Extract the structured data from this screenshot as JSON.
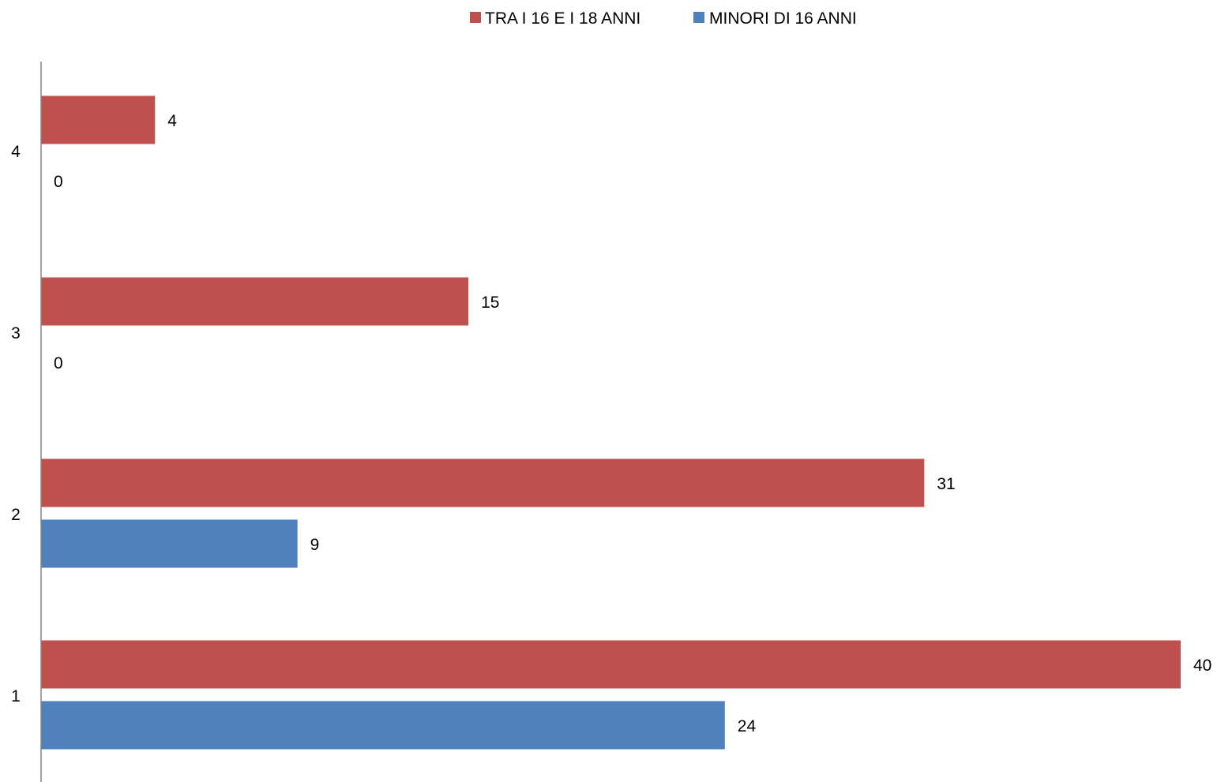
{
  "chart_data": {
    "type": "bar",
    "orientation": "horizontal",
    "categories": [
      "1",
      "2",
      "3",
      "4"
    ],
    "series": [
      {
        "name": "TRA I 16 E I 18 ANNI",
        "color": "#C0504D",
        "values": [
          40,
          31,
          15,
          4
        ]
      },
      {
        "name": "MINORI DI 16 ANNI",
        "color": "#4F81BD",
        "values": [
          24,
          9,
          0,
          0
        ]
      }
    ],
    "xlim": [
      0,
      40
    ],
    "legend_position": "top-center",
    "grid": false,
    "data_labels": true
  }
}
